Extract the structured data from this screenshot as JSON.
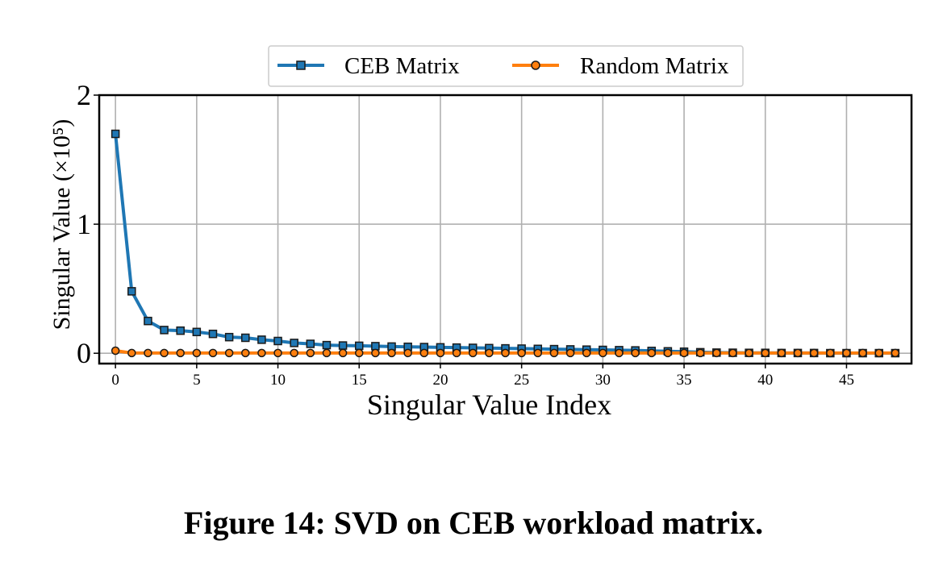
{
  "figure": {
    "caption": "Figure 14: SVD on CEB workload matrix."
  },
  "chart_data": {
    "type": "line",
    "title": "",
    "xlabel": "Singular Value Index",
    "ylabel": "Singular Value (×10⁵)",
    "xlim": [
      -1,
      49
    ],
    "ylim": [
      -0.08,
      2.0
    ],
    "xticks": [
      0,
      5,
      10,
      15,
      20,
      25,
      30,
      35,
      40,
      45
    ],
    "xtick_labels": [
      "0",
      "5",
      "10",
      "15",
      "20",
      "25",
      "30",
      "35",
      "40",
      "45"
    ],
    "yticks": [
      0,
      1,
      2
    ],
    "ytick_labels": [
      "0",
      "1",
      "2"
    ],
    "grid": true,
    "legend_position": "top-center",
    "x": [
      0,
      1,
      2,
      3,
      4,
      5,
      6,
      7,
      8,
      9,
      10,
      11,
      12,
      13,
      14,
      15,
      16,
      17,
      18,
      19,
      20,
      21,
      22,
      23,
      24,
      25,
      26,
      27,
      28,
      29,
      30,
      31,
      32,
      33,
      34,
      35,
      36,
      37,
      38,
      39,
      40,
      41,
      42,
      43,
      44,
      45,
      46,
      47,
      48
    ],
    "series": [
      {
        "name": "CEB Matrix",
        "color": "#1f77b4",
        "marker": "square",
        "values": [
          1.7,
          0.48,
          0.25,
          0.18,
          0.175,
          0.165,
          0.15,
          0.125,
          0.12,
          0.105,
          0.095,
          0.08,
          0.073,
          0.063,
          0.06,
          0.058,
          0.055,
          0.052,
          0.05,
          0.048,
          0.046,
          0.044,
          0.042,
          0.04,
          0.038,
          0.036,
          0.034,
          0.032,
          0.03,
          0.028,
          0.026,
          0.024,
          0.022,
          0.018,
          0.015,
          0.012,
          0.008,
          0.005,
          0.004,
          0.003,
          0.003,
          0.002,
          0.002,
          0.002,
          0.001,
          0.001,
          0.001,
          0.001,
          0.001
        ]
      },
      {
        "name": "Random Matrix",
        "color": "#ff7f0e",
        "marker": "circle",
        "values": [
          0.02,
          0.002,
          0.002,
          0.002,
          0.002,
          0.002,
          0.002,
          0.002,
          0.002,
          0.002,
          0.002,
          0.002,
          0.002,
          0.002,
          0.002,
          0.002,
          0.002,
          0.002,
          0.002,
          0.002,
          0.002,
          0.002,
          0.002,
          0.002,
          0.002,
          0.002,
          0.002,
          0.002,
          0.002,
          0.002,
          0.002,
          0.002,
          0.002,
          0.002,
          0.002,
          0.002,
          0.002,
          0.002,
          0.002,
          0.002,
          0.002,
          0.002,
          0.002,
          0.002,
          0.002,
          0.002,
          0.002,
          0.002,
          0.002
        ]
      }
    ]
  }
}
